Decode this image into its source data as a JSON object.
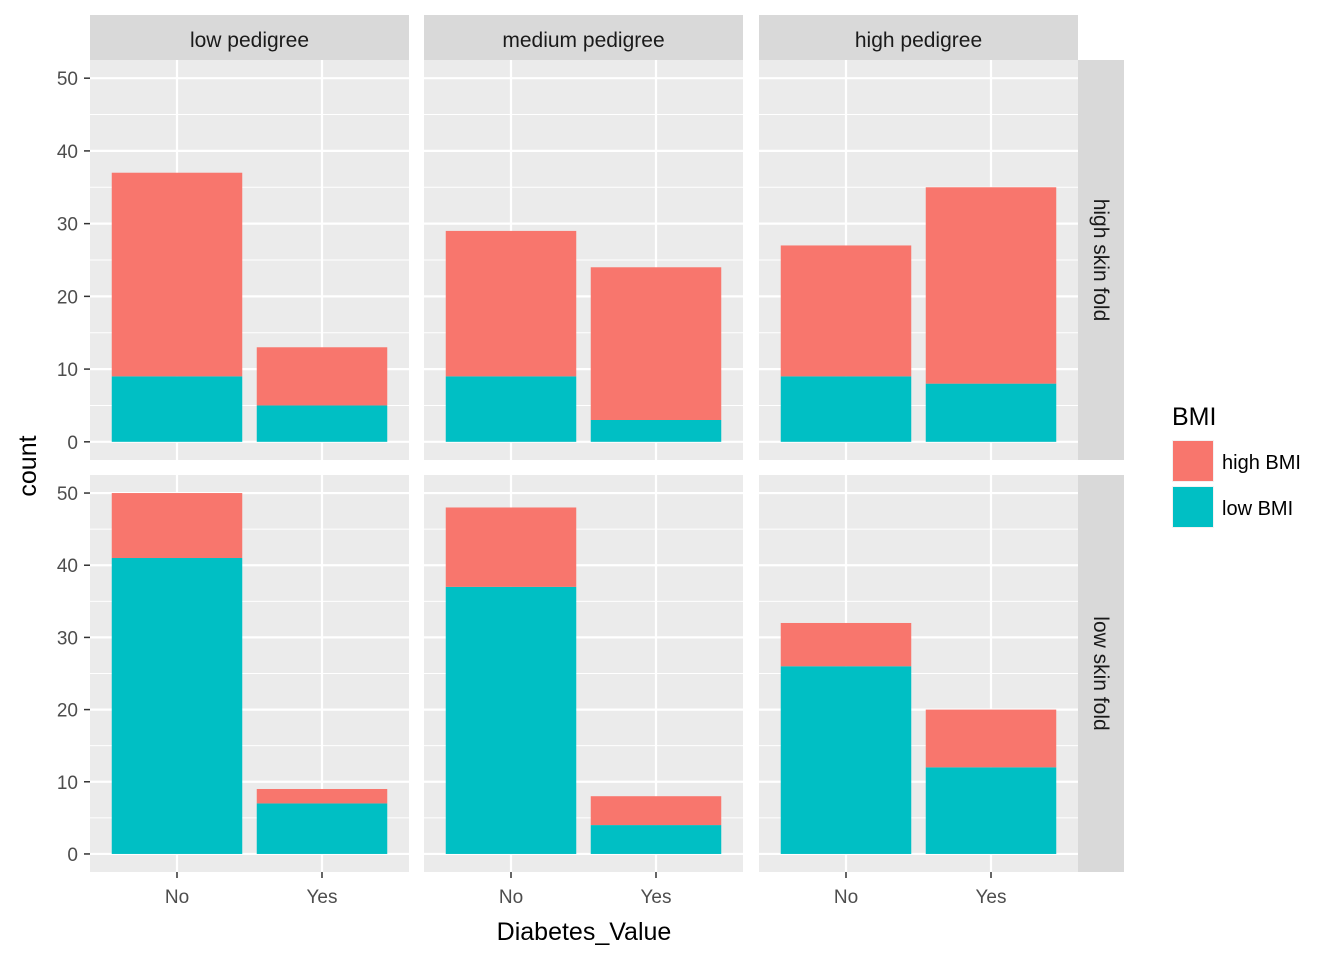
{
  "chart_data": {
    "type": "bar",
    "stacked": true,
    "facet_grid": true,
    "xlabel": "Diabetes_Value",
    "ylabel": "count",
    "ylim": [
      0,
      50
    ],
    "yticks": [
      0,
      10,
      20,
      30,
      40,
      50
    ],
    "grid": true,
    "categories": [
      "No",
      "Yes"
    ],
    "column_facets": [
      "low pedigree",
      "medium pedigree",
      "high pedigree"
    ],
    "row_facets": [
      "high skin fold",
      "low skin fold"
    ],
    "legend": {
      "title": "BMI",
      "placement": "right",
      "entries": [
        {
          "name": "high BMI",
          "color": "#F8766D"
        },
        {
          "name": "low BMI",
          "color": "#00BFC4"
        }
      ]
    },
    "panels": [
      {
        "row": "high skin fold",
        "col": "low pedigree",
        "series": [
          {
            "name": "low BMI",
            "values": [
              9,
              5
            ]
          },
          {
            "name": "high BMI",
            "values": [
              28,
              8
            ]
          }
        ]
      },
      {
        "row": "high skin fold",
        "col": "medium pedigree",
        "series": [
          {
            "name": "low BMI",
            "values": [
              9,
              3
            ]
          },
          {
            "name": "high BMI",
            "values": [
              20,
              21
            ]
          }
        ]
      },
      {
        "row": "high skin fold",
        "col": "high pedigree",
        "series": [
          {
            "name": "low BMI",
            "values": [
              9,
              8
            ]
          },
          {
            "name": "high BMI",
            "values": [
              18,
              27
            ]
          }
        ]
      },
      {
        "row": "low skin fold",
        "col": "low pedigree",
        "series": [
          {
            "name": "low BMI",
            "values": [
              41,
              7
            ]
          },
          {
            "name": "high BMI",
            "values": [
              9,
              2
            ]
          }
        ]
      },
      {
        "row": "low skin fold",
        "col": "medium pedigree",
        "series": [
          {
            "name": "low BMI",
            "values": [
              37,
              4
            ]
          },
          {
            "name": "high BMI",
            "values": [
              11,
              4
            ]
          }
        ]
      },
      {
        "row": "low skin fold",
        "col": "high pedigree",
        "series": [
          {
            "name": "low BMI",
            "values": [
              26,
              12
            ]
          },
          {
            "name": "high BMI",
            "values": [
              6,
              8
            ]
          }
        ]
      }
    ]
  }
}
